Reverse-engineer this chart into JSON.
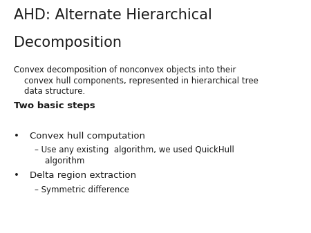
{
  "background_color": "#ffffff",
  "title_line1": "AHD: Alternate Hierarchical",
  "title_line2": "Decomposition",
  "title_fontsize": 15,
  "title_color": "#1a1a1a",
  "subtitle_line1": "Convex decomposition of nonconvex objects into their",
  "subtitle_line2": "    convex hull components, represented in hierarchical tree",
  "subtitle_line3": "    data structure.",
  "subtitle_fontsize": 8.5,
  "subtitle_color": "#1a1a1a",
  "section_header": "Two basic steps",
  "section_header_fontsize": 9.5,
  "section_header_color": "#1a1a1a",
  "bullet1": "Convex hull computation",
  "bullet1_fontsize": 9.5,
  "bullet1_color": "#1a1a1a",
  "sub_bullet1_line1": "– Use any existing  algorithm, we used QuickHull",
  "sub_bullet1_line2": "    algorithm",
  "sub_bullet1_fontsize": 8.5,
  "sub_bullet1_color": "#1a1a1a",
  "bullet2": "Delta region extraction",
  "bullet2_fontsize": 9.5,
  "bullet2_color": "#1a1a1a",
  "sub_bullet2": "– Symmetric difference",
  "sub_bullet2_fontsize": 8.5,
  "sub_bullet2_color": "#1a1a1a",
  "bullet_marker": "•",
  "figsize": [
    4.5,
    3.38
  ],
  "dpi": 100
}
